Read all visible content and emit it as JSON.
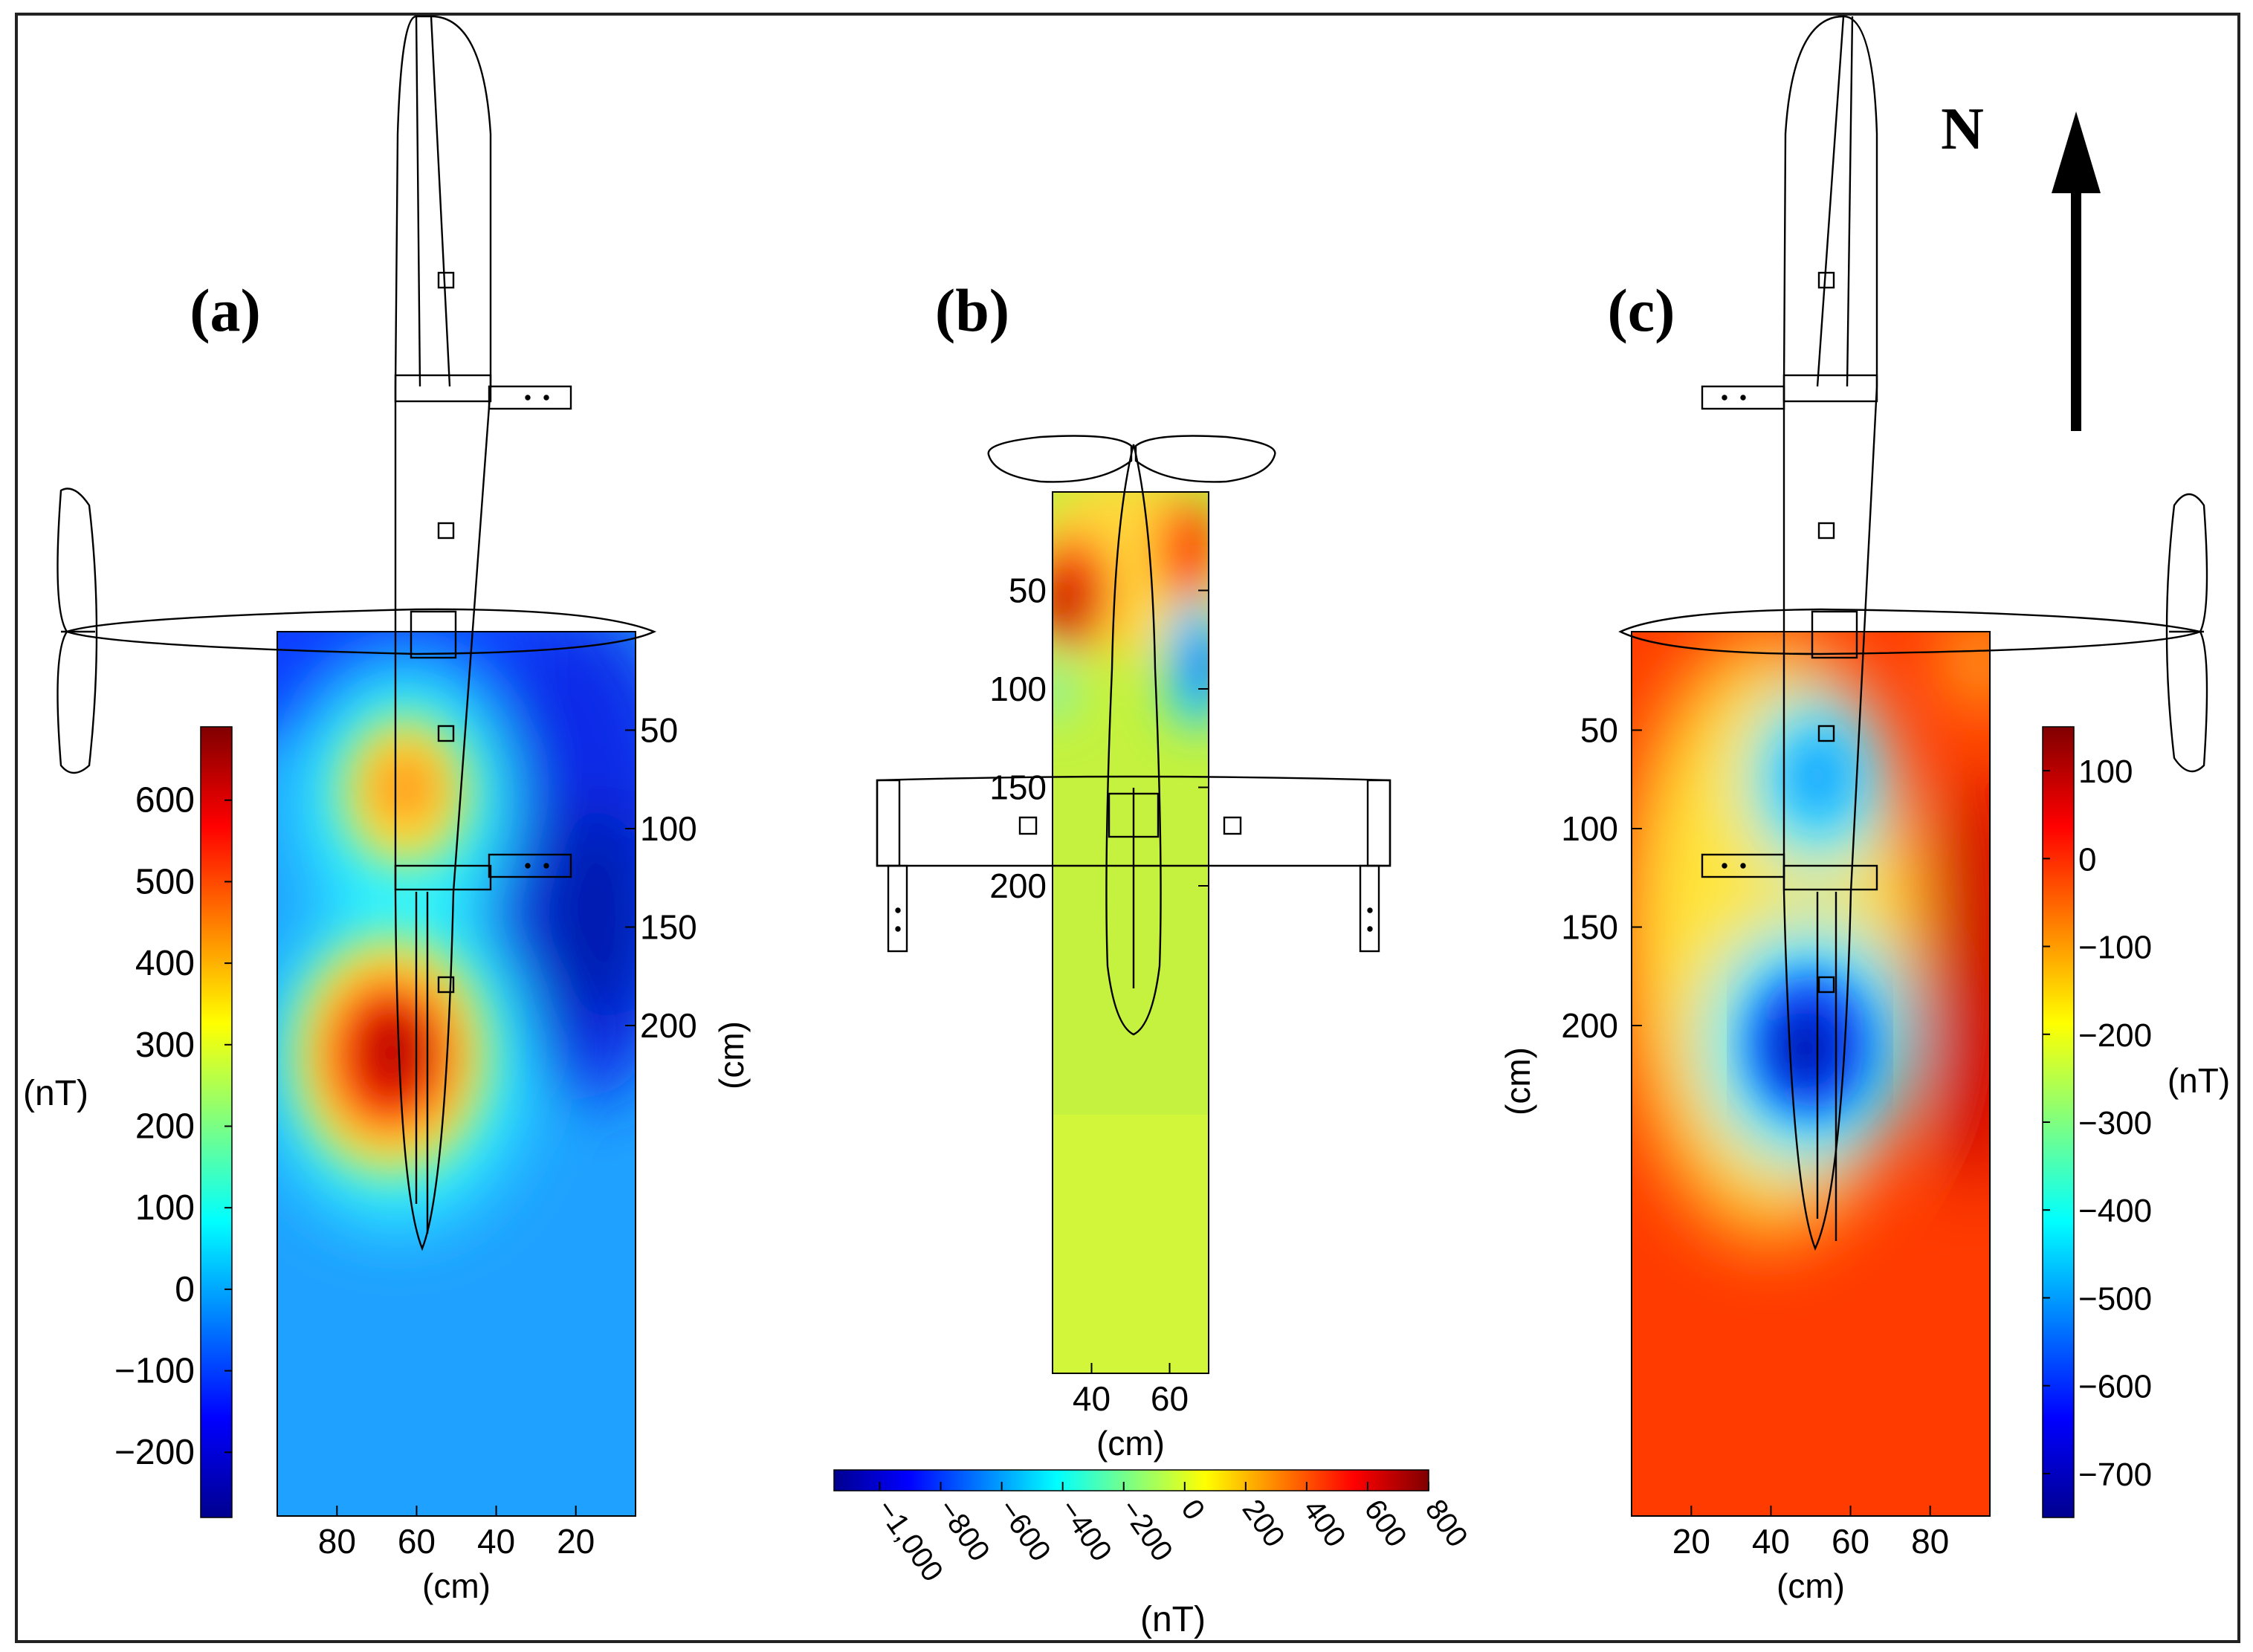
{
  "chart_data": [
    {
      "type": "heatmap",
      "panel_label": "(a)",
      "x_tick_labels": [
        "80",
        "60",
        "40",
        "20"
      ],
      "x_unit": "(cm)",
      "y_tick_labels": [
        "50",
        "100",
        "150",
        "200"
      ],
      "y_unit": "(cm)",
      "xlim": [
        95,
        5
      ],
      "ylim": [
        0,
        225
      ],
      "colorbar": {
        "range": [
          -280,
          690
        ],
        "ticks": [
          "600",
          "500",
          "400",
          "300",
          "200",
          "100",
          "0",
          "−100",
          "−200"
        ],
        "unit": "(nT)",
        "orientation": "vertical",
        "position": "left"
      },
      "field": {
        "background": -60,
        "features": [
          {
            "kind": "high",
            "x": 65,
            "y": 107,
            "peak": 690
          },
          {
            "kind": "high",
            "x": 60,
            "y": 40,
            "peak": 430
          },
          {
            "kind": "low",
            "x": 18,
            "y": 70,
            "peak": -280
          }
        ]
      }
    },
    {
      "type": "heatmap",
      "panel_label": "(b)",
      "x_tick_labels": [
        "40",
        "60"
      ],
      "x_unit": "(cm)",
      "y_tick_labels": [
        "50",
        "100",
        "150",
        "200"
      ],
      "xlim": [
        30,
        70
      ],
      "ylim": [
        0,
        225
      ],
      "colorbar": {
        "range": [
          -1150,
          800
        ],
        "ticks": [
          "−1,000",
          "−800",
          "−600",
          "−400",
          "−200",
          "0",
          "200",
          "400",
          "600",
          "800"
        ],
        "unit": "(nT)",
        "orientation": "horizontal",
        "position": "bottom"
      },
      "field": {
        "background": 100,
        "features": [
          {
            "kind": "high",
            "x": 35,
            "y": 28,
            "peak": 780
          },
          {
            "kind": "high",
            "x": 62,
            "y": 15,
            "peak": 560
          },
          {
            "kind": "low",
            "x": 69,
            "y": 42,
            "peak": -700
          }
        ]
      }
    },
    {
      "type": "heatmap",
      "panel_label": "(c)",
      "x_tick_labels": [
        "20",
        "40",
        "60",
        "80"
      ],
      "x_unit": "(cm)",
      "y_tick_labels": [
        "50",
        "100",
        "150",
        "200"
      ],
      "y_unit": "(cm)",
      "xlim": [
        5,
        95
      ],
      "ylim": [
        0,
        225
      ],
      "colorbar": {
        "range": [
          -750,
          150
        ],
        "ticks": [
          "100",
          "0",
          "−100",
          "−200",
          "−300",
          "−400",
          "−500",
          "−600",
          "−700"
        ],
        "unit": "(nT)",
        "orientation": "vertical",
        "position": "right"
      },
      "field": {
        "background": -20,
        "features": [
          {
            "kind": "low",
            "x": 47,
            "y": 107,
            "peak": -750
          },
          {
            "kind": "low",
            "x": 47,
            "y": 35,
            "peak": -470
          },
          {
            "kind": "high",
            "x": 88,
            "y": 80,
            "peak": 150
          }
        ]
      }
    }
  ],
  "north_label": "N"
}
